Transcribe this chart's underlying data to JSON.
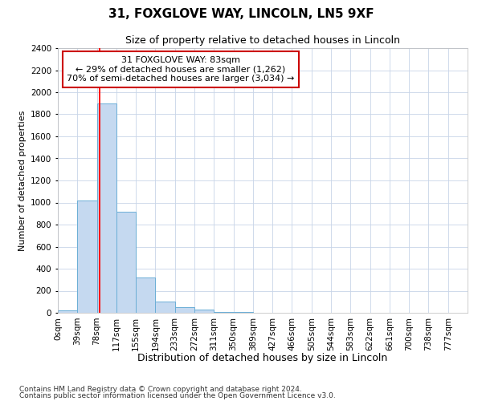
{
  "title1": "31, FOXGLOVE WAY, LINCOLN, LN5 9XF",
  "title2": "Size of property relative to detached houses in Lincoln",
  "xlabel": "Distribution of detached houses by size in Lincoln",
  "ylabel": "Number of detached properties",
  "footer1": "Contains HM Land Registry data © Crown copyright and database right 2024.",
  "footer2": "Contains public sector information licensed under the Open Government Licence v3.0.",
  "annotation_line1": "31 FOXGLOVE WAY: 83sqm",
  "annotation_line2": "← 29% of detached houses are smaller (1,262)",
  "annotation_line3": "70% of semi-detached houses are larger (3,034) →",
  "bar_labels": [
    "0sqm",
    "39sqm",
    "78sqm",
    "117sqm",
    "155sqm",
    "194sqm",
    "233sqm",
    "272sqm",
    "311sqm",
    "350sqm",
    "389sqm",
    "427sqm",
    "466sqm",
    "505sqm",
    "544sqm",
    "583sqm",
    "622sqm",
    "661sqm",
    "700sqm",
    "738sqm",
    "777sqm"
  ],
  "bar_values": [
    25,
    1020,
    1900,
    920,
    320,
    105,
    50,
    30,
    10,
    5,
    2,
    1,
    0,
    0,
    0,
    0,
    0,
    0,
    0,
    0,
    0
  ],
  "bar_color": "#c5d9f0",
  "bar_edge_color": "#6baed6",
  "red_line_x": 2.13,
  "ylim": [
    0,
    2400
  ],
  "yticks": [
    0,
    200,
    400,
    600,
    800,
    1000,
    1200,
    1400,
    1600,
    1800,
    2000,
    2200,
    2400
  ],
  "bg_color": "#ffffff",
  "grid_color": "#c8d4e8",
  "annotation_box_color": "#ffffff",
  "annotation_box_edge": "#cc0000",
  "title1_fontsize": 11,
  "title2_fontsize": 9,
  "ylabel_fontsize": 8,
  "xlabel_fontsize": 9,
  "tick_fontsize": 7.5,
  "footer_fontsize": 6.5,
  "ann_fontsize": 8
}
